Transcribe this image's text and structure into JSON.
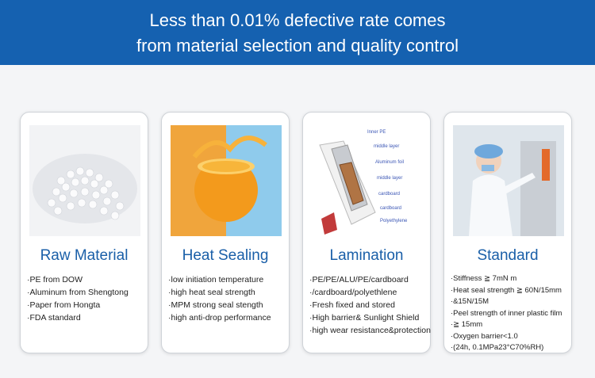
{
  "header": {
    "title_lines": [
      "Less than 0.01% defective rate comes",
      "from material selection and quality control"
    ]
  },
  "cards": [
    {
      "title": "Raw Material",
      "items": [
        "PE from DOW",
        "Aluminum from Shengtong",
        "Paper from Hongta",
        "FDA standard"
      ]
    },
    {
      "title": "Heat Sealing",
      "items": [
        "low initiation temperature",
        "high heat seal strength",
        "MPM strong seal stength",
        "high anti-drop performance"
      ]
    },
    {
      "title": "Lamination",
      "items": [
        "PE/PE/ALU/PE/cardboard",
        "/cardboard/polyethlene",
        "Fresh fixed and stored",
        "High barrier& Sunlight Shield",
        "high wear resistance&protection"
      ],
      "image_labels": [
        "Inner PE",
        "middle layer",
        "Aluminum foil",
        "middle layer",
        "cardboard",
        "cardboard",
        "Polyethylene"
      ]
    },
    {
      "title": "Standard",
      "items": [
        "Stiffness ≧ 7mN m",
        "Heat seal strength ≧ 60N/15mm",
        "&15N/15M",
        "Peel strength of inner plastic film",
        "≧ 15mm",
        "Oxygen barrier<1.0",
        "(24h, 0.1MPa23°C70%RH)"
      ]
    }
  ]
}
